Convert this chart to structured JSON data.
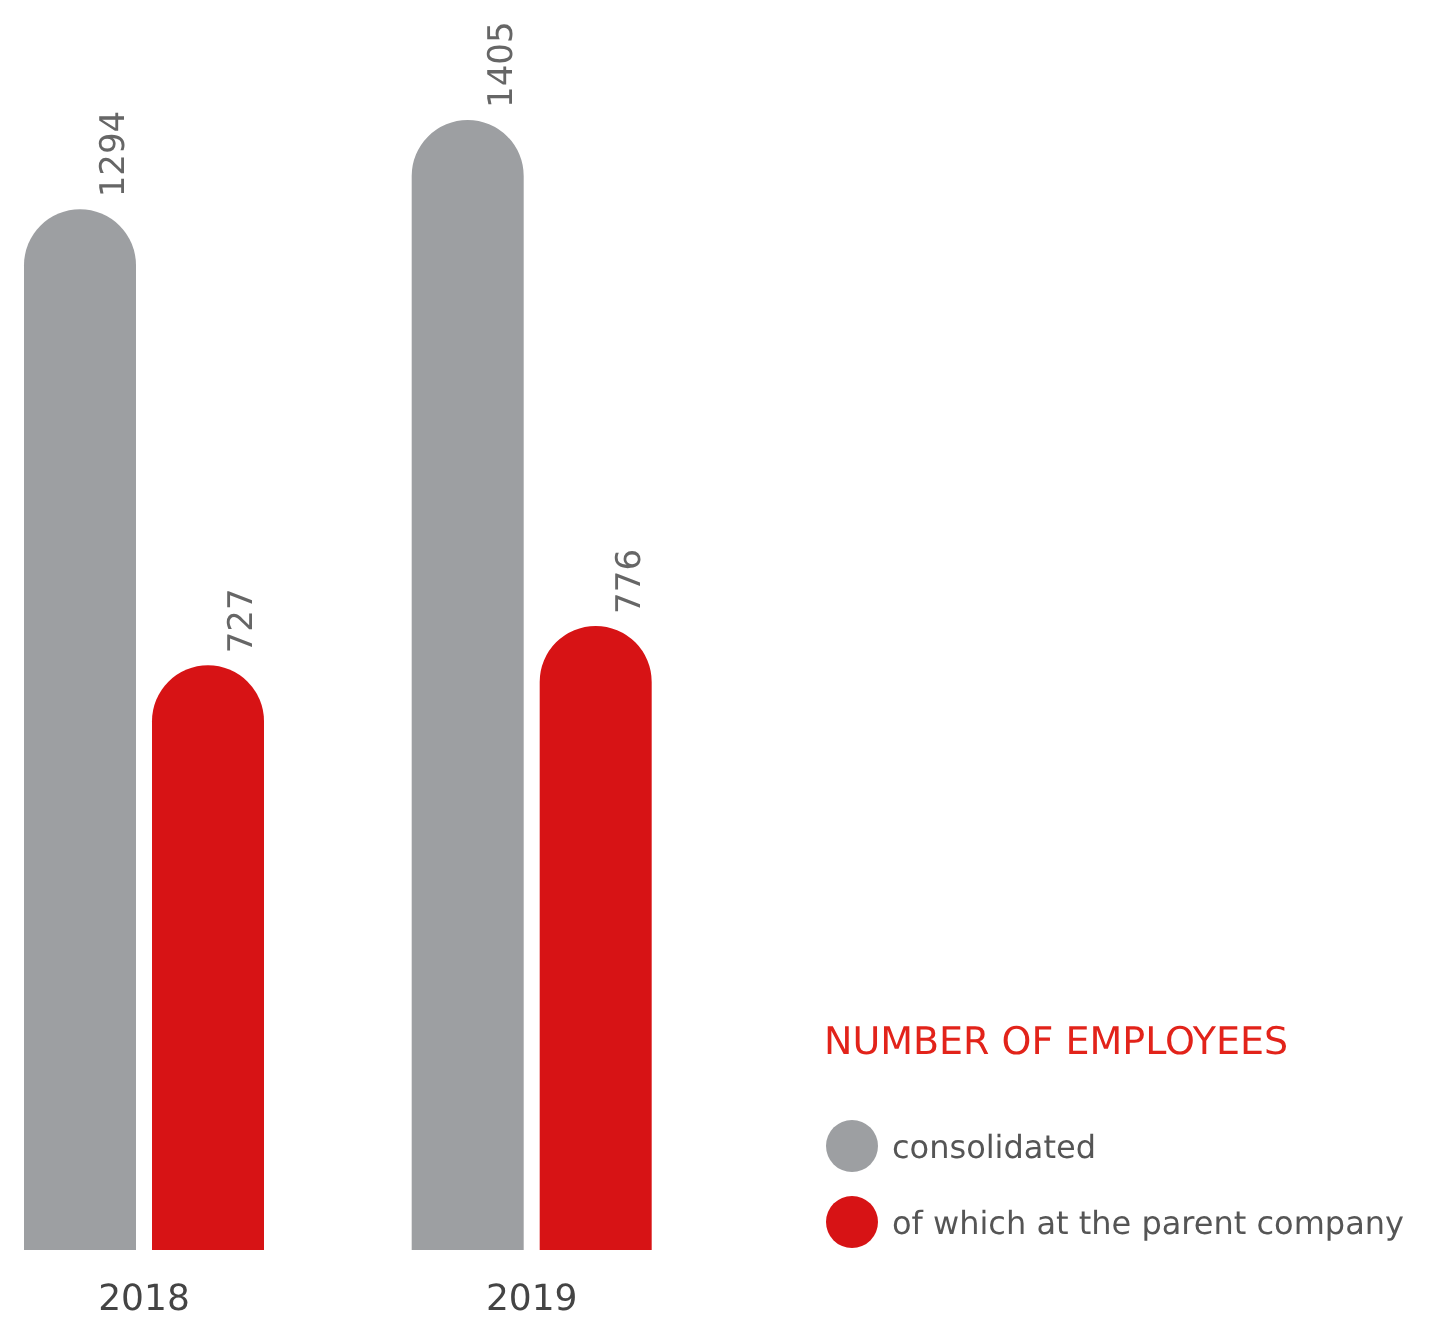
{
  "chart_data": {
    "type": "bar",
    "title": "NUMBER OF EMPLOYEES",
    "categories": [
      "2018",
      "2019"
    ],
    "series": [
      {
        "name": "consolidated",
        "color": "#9d9fa2",
        "values": [
          1294,
          1405
        ]
      },
      {
        "name": "of which at the parent company",
        "color": "#d71315",
        "values": [
          727,
          776
        ]
      }
    ],
    "data_labels": true,
    "legend": "bottom right"
  }
}
